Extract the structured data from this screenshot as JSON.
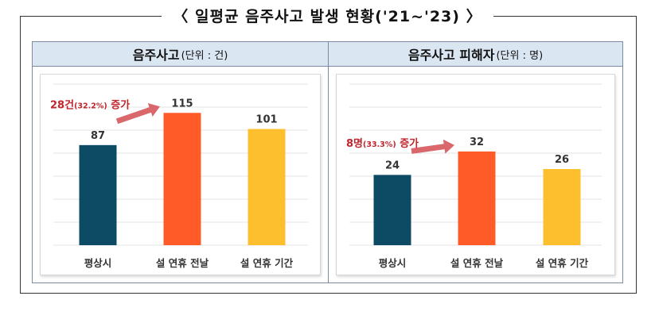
{
  "title": "〈 일평균 음주사고 발생 현황('21~'23) 〉",
  "panels": [
    {
      "main": "음주사고",
      "unit": "(단위 : 건)",
      "annotation": {
        "prefix": "28건",
        "pct": "(32.2%)",
        "suffix": " 증가"
      }
    },
    {
      "main": "음주사고 피해자",
      "unit": "(단위 : 명)",
      "annotation": {
        "prefix": "8명",
        "pct": "(33.3%)",
        "suffix": " 증가"
      }
    }
  ],
  "colors": {
    "navy": "#0d4a63",
    "orange": "#ff5b28",
    "yellow": "#fdbf2d",
    "arrow": "#d9676b",
    "annotation": "#c0262d",
    "grid": "#e3e3e3"
  },
  "chart_data": [
    {
      "type": "bar",
      "title": "음주사고",
      "categories": [
        "평상시",
        "설 연휴 전날",
        "설 연휴 기간"
      ],
      "values": [
        87,
        115,
        101
      ],
      "ylim": [
        0,
        140
      ],
      "grid": true,
      "unit": "건"
    },
    {
      "type": "bar",
      "title": "음주사고 피해자",
      "categories": [
        "평상시",
        "설 연휴 전날",
        "설 연휴 기간"
      ],
      "values": [
        24,
        32,
        26
      ],
      "ylim": [
        0,
        55
      ],
      "grid": true,
      "unit": "명"
    }
  ]
}
